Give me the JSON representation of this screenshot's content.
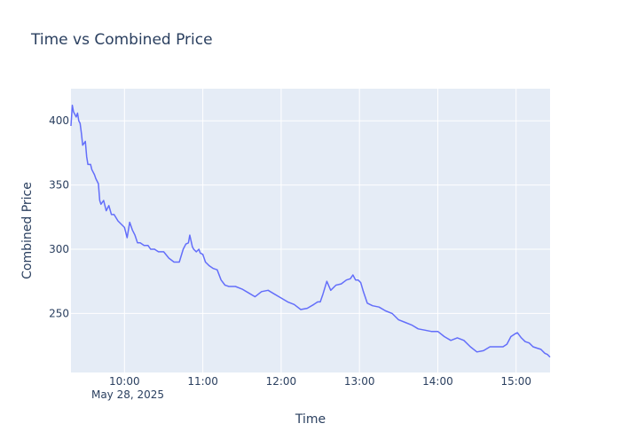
{
  "chart_data": {
    "type": "line",
    "title": "Time vs Combined Price",
    "xlabel": "Time",
    "ylabel": "Combined Price",
    "date_label": "May 28, 2025",
    "x_ticks": [
      "10:00",
      "11:00",
      "12:00",
      "13:00",
      "14:00",
      "15:00"
    ],
    "y_ticks": [
      250,
      300,
      350,
      400
    ],
    "xlim": [
      "09:19",
      "15:26"
    ],
    "ylim": [
      204,
      425
    ],
    "grid": true,
    "line_color": "#636efa",
    "plot_bg": "#e5ecf6",
    "series": [
      {
        "x": [
          "09:19",
          "09:20",
          "09:21",
          "09:22",
          "09:23",
          "09:24",
          "09:25",
          "09:26",
          "09:27",
          "09:28",
          "09:30",
          "09:31",
          "09:32",
          "09:34",
          "09:35",
          "09:37",
          "09:38",
          "09:40",
          "09:41",
          "09:42",
          "09:44",
          "09:46",
          "09:48",
          "09:50",
          "09:52",
          "09:55",
          "09:58",
          "10:00",
          "10:02",
          "10:04",
          "10:06",
          "10:08",
          "10:10",
          "10:12",
          "10:15",
          "10:18",
          "10:20",
          "10:23",
          "10:26",
          "10:30",
          "10:34",
          "10:38",
          "10:42",
          "10:45",
          "10:47",
          "10:49",
          "10:50",
          "10:52",
          "10:53",
          "10:55",
          "10:57",
          "10:58",
          "11:00",
          "11:02",
          "11:05",
          "11:08",
          "11:11",
          "11:14",
          "11:17",
          "11:20",
          "11:25",
          "11:30",
          "11:35",
          "11:40",
          "11:45",
          "11:50",
          "11:55",
          "12:00",
          "12:05",
          "12:10",
          "12:15",
          "12:20",
          "12:25",
          "12:28",
          "12:30",
          "12:32",
          "12:35",
          "12:38",
          "12:42",
          "12:46",
          "12:50",
          "12:53",
          "12:55",
          "12:57",
          "12:59",
          "13:01",
          "13:03",
          "13:06",
          "13:10",
          "13:15",
          "13:20",
          "13:25",
          "13:30",
          "13:35",
          "13:40",
          "13:45",
          "13:50",
          "13:55",
          "14:00",
          "14:05",
          "14:10",
          "14:15",
          "14:20",
          "14:25",
          "14:30",
          "14:35",
          "14:40",
          "14:45",
          "14:50",
          "14:53",
          "14:56",
          "14:59",
          "15:01",
          "15:04",
          "15:07",
          "15:10",
          "15:13",
          "15:16",
          "15:19",
          "15:22",
          "15:24",
          "15:26"
        ],
        "y": [
          396,
          412,
          407,
          405,
          403,
          406,
          400,
          398,
          390,
          381,
          384,
          372,
          366,
          366,
          362,
          358,
          355,
          351,
          338,
          335,
          338,
          330,
          334,
          327,
          327,
          322,
          319,
          317,
          309,
          321,
          315,
          311,
          305,
          305,
          303,
          303,
          300,
          300,
          298,
          298,
          293,
          290,
          290,
          300,
          304,
          305,
          311,
          302,
          300,
          298,
          300,
          297,
          296,
          290,
          287,
          285,
          284,
          276,
          272,
          271,
          271,
          269,
          266,
          263,
          267,
          268,
          265,
          262,
          259,
          257,
          253,
          254,
          257,
          259,
          259,
          265,
          275,
          268,
          272,
          273,
          276,
          277,
          280,
          276,
          276,
          274,
          267,
          258,
          256,
          255,
          252,
          250,
          245,
          243,
          241,
          238,
          237,
          236,
          236,
          232,
          229,
          231,
          229,
          224,
          220,
          221,
          224,
          224,
          224,
          226,
          232,
          234,
          235,
          231,
          228,
          227,
          224,
          223,
          222,
          219,
          218,
          216
        ]
      }
    ]
  }
}
